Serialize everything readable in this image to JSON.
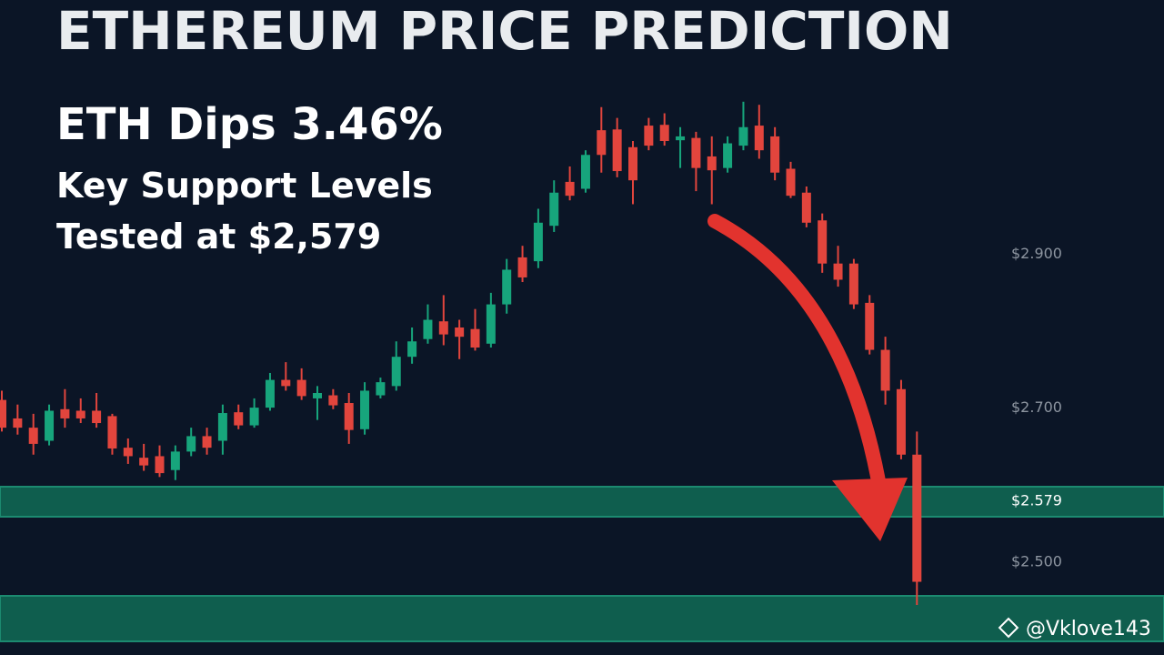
{
  "chart_data": {
    "type": "candlestick",
    "title": "ETHEREUM PRICE PREDICTION",
    "subtitle": "ETH Dips 3.46%",
    "annotations": [
      "Key Support Levels",
      "Tested at $2,579"
    ],
    "watermark": "@Vklove143",
    "up_color": "#17a57c",
    "down_color": "#e2453d",
    "ylim": [
      2385,
      3235
    ],
    "yticks": [
      {
        "value": 2900,
        "label": "$2.900"
      },
      {
        "value": 2700,
        "label": "$2.700"
      },
      {
        "value": 2579,
        "label": "$2.579"
      },
      {
        "value": 2500,
        "label": "$2.500"
      }
    ],
    "ytick_colors": [
      "#8d95a0",
      "#8d95a0",
      "#ffffff",
      "#8d95a0"
    ],
    "open": [
      2716,
      2692,
      2680,
      2663,
      2704,
      2702,
      2702,
      2695,
      2654,
      2641,
      2643,
      2625,
      2649,
      2669,
      2663,
      2700,
      2683,
      2706,
      2742,
      2742,
      2718,
      2722,
      2712,
      2678,
      2722,
      2734,
      2772,
      2795,
      2818,
      2810,
      2808,
      2789,
      2840,
      2901,
      2896,
      2942,
      2999,
      2990,
      3066,
      3067,
      3044,
      3072,
      3073,
      3053,
      3056,
      3032,
      3017,
      3046,
      3072,
      3058,
      3016,
      2985,
      2949,
      2893,
      2893,
      2842,
      2781,
      2730,
      2645
    ],
    "high": [
      2728,
      2710,
      2698,
      2710,
      2730,
      2718,
      2725,
      2698,
      2666,
      2659,
      2657,
      2657,
      2680,
      2680,
      2710,
      2710,
      2718,
      2751,
      2765,
      2757,
      2734,
      2730,
      2725,
      2739,
      2745,
      2792,
      2810,
      2840,
      2852,
      2820,
      2834,
      2855,
      2899,
      2916,
      2964,
      3001,
      3019,
      3040,
      3096,
      3082,
      3052,
      3082,
      3088,
      3070,
      3064,
      3058,
      3058,
      3103,
      3099,
      3070,
      3025,
      2993,
      2958,
      2916,
      2899,
      2852,
      2798,
      2742,
      2675
    ],
    "low": [
      2675,
      2671,
      2645,
      2657,
      2680,
      2686,
      2680,
      2645,
      2633,
      2624,
      2616,
      2612,
      2643,
      2645,
      2645,
      2678,
      2680,
      2702,
      2728,
      2716,
      2690,
      2704,
      2659,
      2671,
      2718,
      2728,
      2763,
      2789,
      2787,
      2769,
      2780,
      2784,
      2828,
      2869,
      2887,
      2934,
      2975,
      2985,
      3011,
      3005,
      2970,
      3040,
      3046,
      3017,
      2987,
      2970,
      3011,
      3040,
      3029,
      3001,
      2978,
      2940,
      2881,
      2863,
      2834,
      2775,
      2710,
      2639,
      2450
    ],
    "close": [
      2680,
      2680,
      2659,
      2702,
      2692,
      2692,
      2686,
      2653,
      2643,
      2631,
      2621,
      2649,
      2669,
      2654,
      2699,
      2683,
      2706,
      2742,
      2734,
      2721,
      2725,
      2709,
      2677,
      2728,
      2739,
      2772,
      2792,
      2820,
      2801,
      2798,
      2784,
      2840,
      2885,
      2875,
      2946,
      2985,
      2981,
      3034,
      3034,
      3013,
      3001,
      3046,
      3052,
      3058,
      3017,
      3014,
      3049,
      3070,
      3040,
      3011,
      2981,
      2946,
      2893,
      2872,
      2840,
      2781,
      2728,
      2645,
      2480
    ]
  }
}
